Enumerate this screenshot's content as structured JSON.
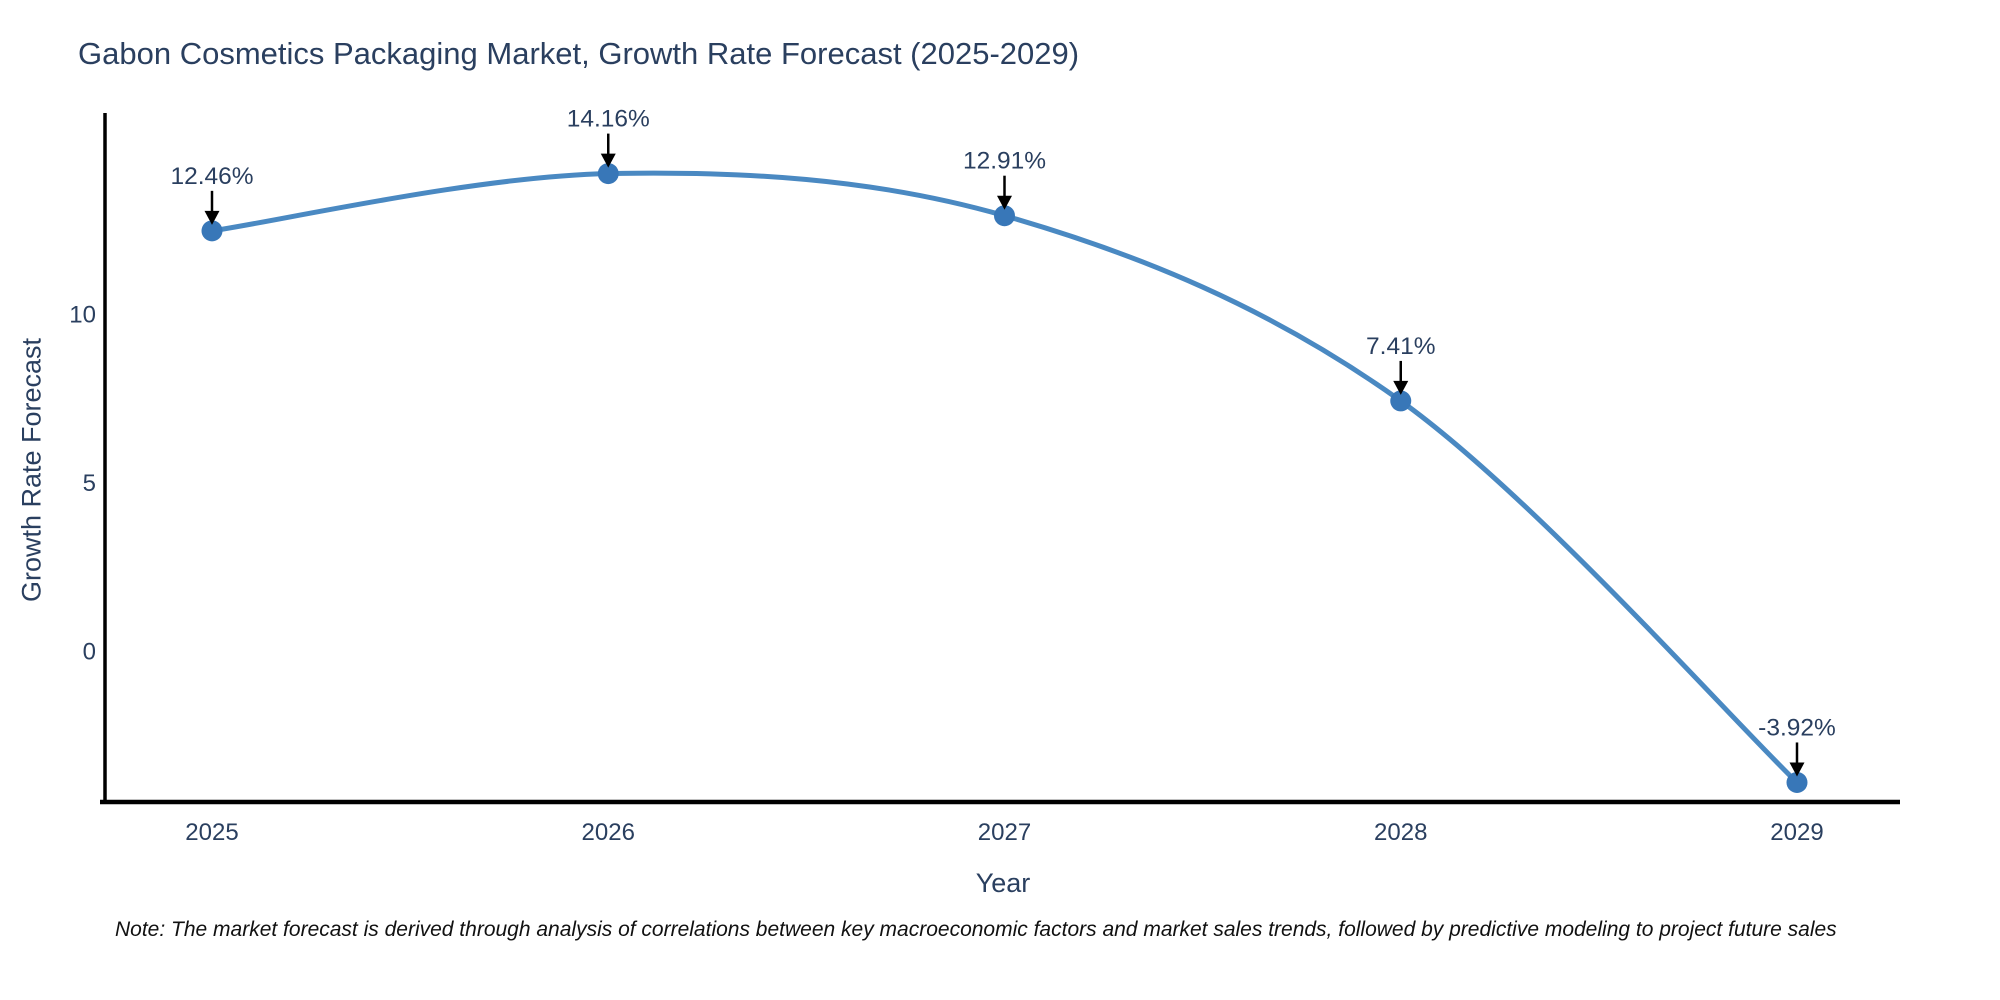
{
  "chart_data": {
    "type": "line",
    "title": "Gabon Cosmetics Packaging Market, Growth Rate Forecast (2025-2029)",
    "xlabel": "Year",
    "ylabel": "Growth Rate Forecast",
    "categories": [
      "2025",
      "2026",
      "2027",
      "2028",
      "2029"
    ],
    "values": [
      12.46,
      14.16,
      12.91,
      7.41,
      -3.92
    ],
    "point_labels": [
      "12.46%",
      "14.16%",
      "12.91%",
      "7.41%",
      "-3.92%"
    ],
    "yticks": [
      "0",
      "5",
      "10"
    ],
    "ytick_values": [
      0,
      5,
      10
    ],
    "ylim": [
      -4.5,
      15.9
    ],
    "line_shape": "spline",
    "grid": false,
    "legend": "none",
    "colors": {
      "line": "#4a89c2",
      "marker": "#3877b8",
      "arrow": "#000000",
      "axis": "#000000",
      "text": "#2a3f5f",
      "note_text": "#111111",
      "background": "#ffffff"
    }
  },
  "footnote": "Note: The market forecast is derived through analysis of correlations between key macroeconomic factors and market sales trends, followed by predictive modeling to project future sales"
}
